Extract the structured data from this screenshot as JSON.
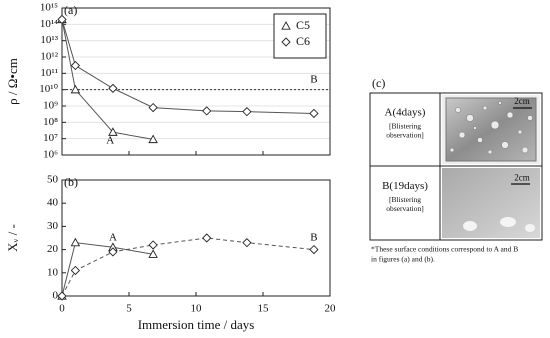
{
  "chart_data": [
    {
      "type": "line",
      "title": "(a)",
      "ylabel": "ρ / Ω•cm",
      "yscale": "log",
      "xlim": [
        0,
        20
      ],
      "xticks": [
        0,
        5,
        10,
        15,
        20
      ],
      "xtick_labels": false,
      "ylim": [
        1000000.0,
        1000000000000000.0
      ],
      "yticks": [
        {
          "value": 1000000.0,
          "label": "10⁶"
        },
        {
          "value": 10000000.0,
          "label": "10⁷"
        },
        {
          "value": 100000000.0,
          "label": "10⁸"
        },
        {
          "value": 1000000000.0,
          "label": "10⁹"
        },
        {
          "value": 10000000000.0,
          "label": "10¹⁰"
        },
        {
          "value": 100000000000.0,
          "label": "10¹¹"
        },
        {
          "value": 1000000000000.0,
          "label": "10¹²"
        },
        {
          "value": 10000000000000.0,
          "label": "10¹³"
        },
        {
          "value": 100000000000000.0,
          "label": "10¹⁴"
        },
        {
          "value": 1000000000000000.0,
          "label": "10¹⁵"
        }
      ],
      "grid": true,
      "hline": 10000000000.0,
      "legend": "upper right",
      "series": [
        {
          "name": "C5",
          "marker": "triangle",
          "color": "#555555",
          "x": [
            0,
            1,
            3.8,
            6.8
          ],
          "values": [
            200000000000000.0,
            10000000000.0,
            25000000.0,
            9000000.0
          ]
        },
        {
          "name": "C6",
          "marker": "diamond",
          "color": "#555555",
          "x": [
            0,
            1,
            3.8,
            6.8,
            10.8,
            13.8,
            18.8
          ],
          "values": [
            200000000000000.0,
            300000000000.0,
            12000000000.0,
            800000000.0,
            500000000.0,
            450000000.0,
            350000000.0
          ]
        }
      ],
      "annotations": [
        {
          "text": "A",
          "x": 3.6,
          "y": 7000000.0
        },
        {
          "text": "B",
          "x": 18.8,
          "y": 40000000000.0
        }
      ]
    },
    {
      "type": "line",
      "title": "(b)",
      "ylabel": "Xᵥ / -",
      "xlabel": "Immersion time / days",
      "xlim": [
        0,
        20
      ],
      "xticks": [
        0,
        5,
        10,
        15,
        20
      ],
      "ylim": [
        0,
        50
      ],
      "yticks": [
        0,
        10,
        20,
        30,
        40,
        50
      ],
      "series": [
        {
          "name": "C5",
          "marker": "triangle",
          "color": "#555555",
          "x": [
            0,
            1,
            3.8,
            6.8
          ],
          "values": [
            0,
            23,
            21,
            18
          ]
        },
        {
          "name": "C6",
          "marker": "diamond",
          "color": "#555555",
          "dashed": true,
          "x": [
            0,
            1,
            3.8,
            6.8,
            10.8,
            13.8,
            18.8
          ],
          "values": [
            0,
            11,
            19,
            22,
            25,
            23,
            20
          ]
        }
      ],
      "annotations": [
        {
          "text": "A",
          "x": 3.8,
          "y": 25
        },
        {
          "text": "B",
          "x": 18.8,
          "y": 25
        }
      ]
    }
  ],
  "panel_c": {
    "label": "(c)",
    "rows": [
      {
        "title": "A(4days)",
        "note": [
          "[Blistering",
          "observation]"
        ],
        "scale": "2cm"
      },
      {
        "title": "B(19days)",
        "note": [
          "[Blistering",
          "observation]"
        ],
        "scale": "2cm"
      }
    ],
    "caption": [
      "*These surface conditions correspond to A and B",
      "in figures (a) and (b)."
    ]
  }
}
